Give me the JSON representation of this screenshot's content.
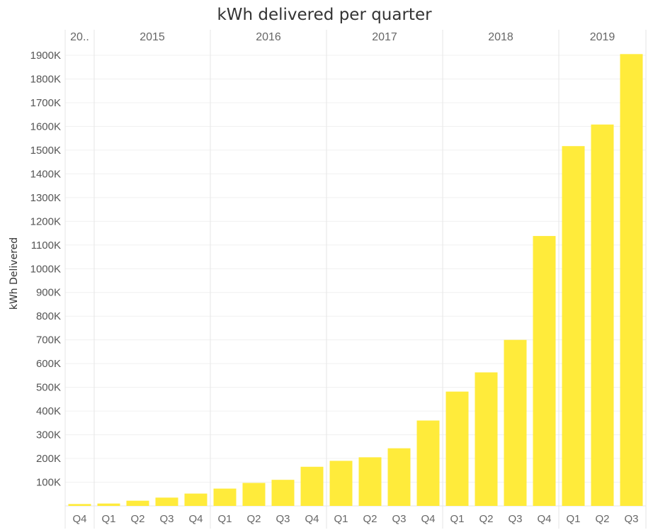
{
  "chart_data": {
    "type": "bar",
    "title": "kWh delivered per quarter",
    "xlabel": "",
    "ylabel": "kWh Delivered",
    "ylim": [
      0,
      1950000
    ],
    "bar_color": "#ffeb3b",
    "year_groups": [
      {
        "label": "20..",
        "count": 1
      },
      {
        "label": "2015",
        "count": 4
      },
      {
        "label": "2016",
        "count": 4
      },
      {
        "label": "2017",
        "count": 4
      },
      {
        "label": "2018",
        "count": 4
      },
      {
        "label": "2019",
        "count": 3
      }
    ],
    "categories": [
      "Q4",
      "Q1",
      "Q2",
      "Q3",
      "Q4",
      "Q1",
      "Q2",
      "Q3",
      "Q4",
      "Q1",
      "Q2",
      "Q3",
      "Q4",
      "Q1",
      "Q2",
      "Q3",
      "Q4",
      "Q1",
      "Q2",
      "Q3"
    ],
    "values": [
      8000,
      10000,
      22000,
      35000,
      52000,
      73000,
      97000,
      110000,
      165000,
      190000,
      205000,
      243000,
      360000,
      482000,
      563000,
      700000,
      1138000,
      1517000,
      1608000,
      1905000
    ],
    "y_ticks": [
      {
        "value": 100000,
        "label": "100K"
      },
      {
        "value": 200000,
        "label": "200K"
      },
      {
        "value": 300000,
        "label": "300K"
      },
      {
        "value": 400000,
        "label": "400K"
      },
      {
        "value": 500000,
        "label": "500K"
      },
      {
        "value": 600000,
        "label": "600K"
      },
      {
        "value": 700000,
        "label": "700K"
      },
      {
        "value": 800000,
        "label": "800K"
      },
      {
        "value": 900000,
        "label": "900K"
      },
      {
        "value": 1000000,
        "label": "1000K"
      },
      {
        "value": 1100000,
        "label": "1100K"
      },
      {
        "value": 1200000,
        "label": "1200K"
      },
      {
        "value": 1300000,
        "label": "1300K"
      },
      {
        "value": 1400000,
        "label": "1400K"
      },
      {
        "value": 1500000,
        "label": "1500K"
      },
      {
        "value": 1600000,
        "label": "1600K"
      },
      {
        "value": 1700000,
        "label": "1700K"
      },
      {
        "value": 1800000,
        "label": "1800K"
      },
      {
        "value": 1900000,
        "label": "1900K"
      }
    ],
    "grid": true
  }
}
